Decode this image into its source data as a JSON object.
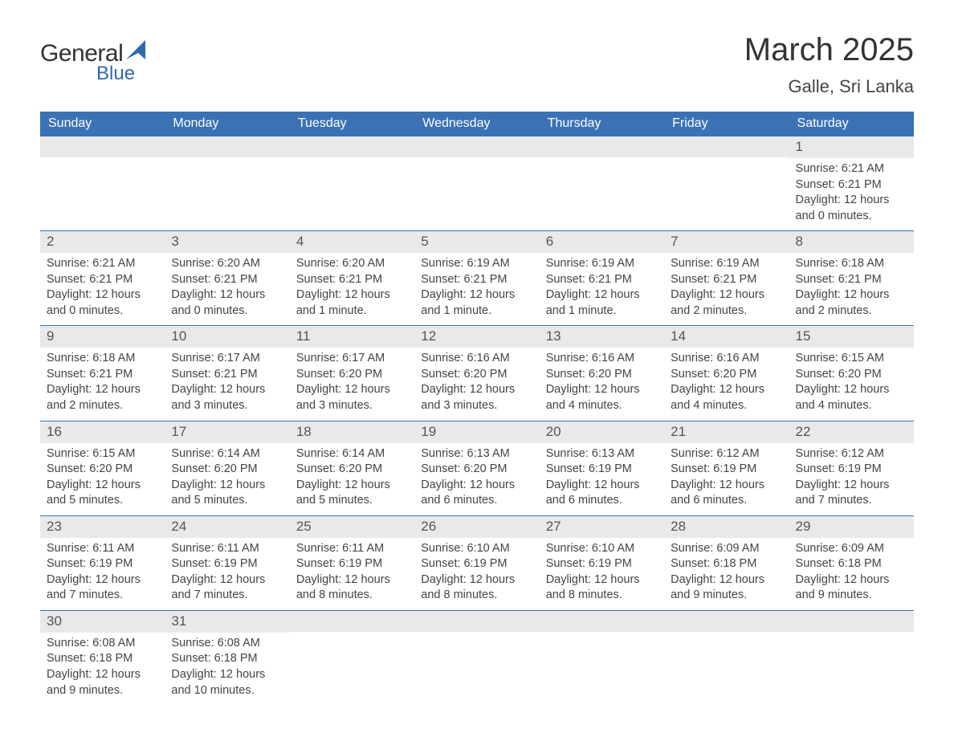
{
  "brand": {
    "top": "General",
    "bottom": "Blue",
    "sail_color": "#2f6aad"
  },
  "title": "March 2025",
  "location": "Galle, Sri Lanka",
  "colors": {
    "header_bg": "#3a72b5",
    "header_text": "#ffffff",
    "daybar_bg": "#e9e9e9",
    "border": "#3a72b5",
    "text": "#444444"
  },
  "typography": {
    "title_fontsize_pt": 30,
    "location_fontsize_pt": 16,
    "dayheader_fontsize_pt": 12,
    "daynum_fontsize_pt": 13,
    "body_fontsize_pt": 11
  },
  "day_headers": [
    "Sunday",
    "Monday",
    "Tuesday",
    "Wednesday",
    "Thursday",
    "Friday",
    "Saturday"
  ],
  "weeks": [
    [
      null,
      null,
      null,
      null,
      null,
      null,
      {
        "n": "1",
        "sr": "Sunrise: 6:21 AM",
        "ss": "Sunset: 6:21 PM",
        "d1": "Daylight: 12 hours",
        "d2": "and 0 minutes."
      }
    ],
    [
      {
        "n": "2",
        "sr": "Sunrise: 6:21 AM",
        "ss": "Sunset: 6:21 PM",
        "d1": "Daylight: 12 hours",
        "d2": "and 0 minutes."
      },
      {
        "n": "3",
        "sr": "Sunrise: 6:20 AM",
        "ss": "Sunset: 6:21 PM",
        "d1": "Daylight: 12 hours",
        "d2": "and 0 minutes."
      },
      {
        "n": "4",
        "sr": "Sunrise: 6:20 AM",
        "ss": "Sunset: 6:21 PM",
        "d1": "Daylight: 12 hours",
        "d2": "and 1 minute."
      },
      {
        "n": "5",
        "sr": "Sunrise: 6:19 AM",
        "ss": "Sunset: 6:21 PM",
        "d1": "Daylight: 12 hours",
        "d2": "and 1 minute."
      },
      {
        "n": "6",
        "sr": "Sunrise: 6:19 AM",
        "ss": "Sunset: 6:21 PM",
        "d1": "Daylight: 12 hours",
        "d2": "and 1 minute."
      },
      {
        "n": "7",
        "sr": "Sunrise: 6:19 AM",
        "ss": "Sunset: 6:21 PM",
        "d1": "Daylight: 12 hours",
        "d2": "and 2 minutes."
      },
      {
        "n": "8",
        "sr": "Sunrise: 6:18 AM",
        "ss": "Sunset: 6:21 PM",
        "d1": "Daylight: 12 hours",
        "d2": "and 2 minutes."
      }
    ],
    [
      {
        "n": "9",
        "sr": "Sunrise: 6:18 AM",
        "ss": "Sunset: 6:21 PM",
        "d1": "Daylight: 12 hours",
        "d2": "and 2 minutes."
      },
      {
        "n": "10",
        "sr": "Sunrise: 6:17 AM",
        "ss": "Sunset: 6:21 PM",
        "d1": "Daylight: 12 hours",
        "d2": "and 3 minutes."
      },
      {
        "n": "11",
        "sr": "Sunrise: 6:17 AM",
        "ss": "Sunset: 6:20 PM",
        "d1": "Daylight: 12 hours",
        "d2": "and 3 minutes."
      },
      {
        "n": "12",
        "sr": "Sunrise: 6:16 AM",
        "ss": "Sunset: 6:20 PM",
        "d1": "Daylight: 12 hours",
        "d2": "and 3 minutes."
      },
      {
        "n": "13",
        "sr": "Sunrise: 6:16 AM",
        "ss": "Sunset: 6:20 PM",
        "d1": "Daylight: 12 hours",
        "d2": "and 4 minutes."
      },
      {
        "n": "14",
        "sr": "Sunrise: 6:16 AM",
        "ss": "Sunset: 6:20 PM",
        "d1": "Daylight: 12 hours",
        "d2": "and 4 minutes."
      },
      {
        "n": "15",
        "sr": "Sunrise: 6:15 AM",
        "ss": "Sunset: 6:20 PM",
        "d1": "Daylight: 12 hours",
        "d2": "and 4 minutes."
      }
    ],
    [
      {
        "n": "16",
        "sr": "Sunrise: 6:15 AM",
        "ss": "Sunset: 6:20 PM",
        "d1": "Daylight: 12 hours",
        "d2": "and 5 minutes."
      },
      {
        "n": "17",
        "sr": "Sunrise: 6:14 AM",
        "ss": "Sunset: 6:20 PM",
        "d1": "Daylight: 12 hours",
        "d2": "and 5 minutes."
      },
      {
        "n": "18",
        "sr": "Sunrise: 6:14 AM",
        "ss": "Sunset: 6:20 PM",
        "d1": "Daylight: 12 hours",
        "d2": "and 5 minutes."
      },
      {
        "n": "19",
        "sr": "Sunrise: 6:13 AM",
        "ss": "Sunset: 6:20 PM",
        "d1": "Daylight: 12 hours",
        "d2": "and 6 minutes."
      },
      {
        "n": "20",
        "sr": "Sunrise: 6:13 AM",
        "ss": "Sunset: 6:19 PM",
        "d1": "Daylight: 12 hours",
        "d2": "and 6 minutes."
      },
      {
        "n": "21",
        "sr": "Sunrise: 6:12 AM",
        "ss": "Sunset: 6:19 PM",
        "d1": "Daylight: 12 hours",
        "d2": "and 6 minutes."
      },
      {
        "n": "22",
        "sr": "Sunrise: 6:12 AM",
        "ss": "Sunset: 6:19 PM",
        "d1": "Daylight: 12 hours",
        "d2": "and 7 minutes."
      }
    ],
    [
      {
        "n": "23",
        "sr": "Sunrise: 6:11 AM",
        "ss": "Sunset: 6:19 PM",
        "d1": "Daylight: 12 hours",
        "d2": "and 7 minutes."
      },
      {
        "n": "24",
        "sr": "Sunrise: 6:11 AM",
        "ss": "Sunset: 6:19 PM",
        "d1": "Daylight: 12 hours",
        "d2": "and 7 minutes."
      },
      {
        "n": "25",
        "sr": "Sunrise: 6:11 AM",
        "ss": "Sunset: 6:19 PM",
        "d1": "Daylight: 12 hours",
        "d2": "and 8 minutes."
      },
      {
        "n": "26",
        "sr": "Sunrise: 6:10 AM",
        "ss": "Sunset: 6:19 PM",
        "d1": "Daylight: 12 hours",
        "d2": "and 8 minutes."
      },
      {
        "n": "27",
        "sr": "Sunrise: 6:10 AM",
        "ss": "Sunset: 6:19 PM",
        "d1": "Daylight: 12 hours",
        "d2": "and 8 minutes."
      },
      {
        "n": "28",
        "sr": "Sunrise: 6:09 AM",
        "ss": "Sunset: 6:18 PM",
        "d1": "Daylight: 12 hours",
        "d2": "and 9 minutes."
      },
      {
        "n": "29",
        "sr": "Sunrise: 6:09 AM",
        "ss": "Sunset: 6:18 PM",
        "d1": "Daylight: 12 hours",
        "d2": "and 9 minutes."
      }
    ],
    [
      {
        "n": "30",
        "sr": "Sunrise: 6:08 AM",
        "ss": "Sunset: 6:18 PM",
        "d1": "Daylight: 12 hours",
        "d2": "and 9 minutes."
      },
      {
        "n": "31",
        "sr": "Sunrise: 6:08 AM",
        "ss": "Sunset: 6:18 PM",
        "d1": "Daylight: 12 hours",
        "d2": "and 10 minutes."
      },
      null,
      null,
      null,
      null,
      null
    ]
  ]
}
